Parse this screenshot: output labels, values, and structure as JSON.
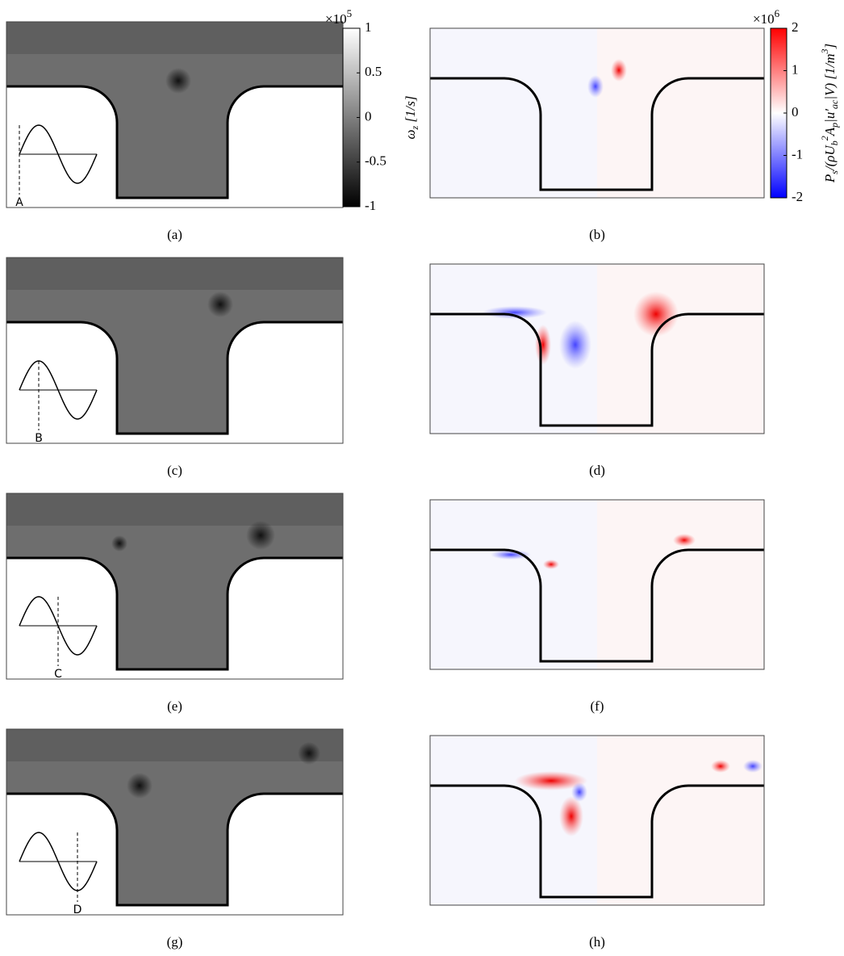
{
  "colorbars": [
    {
      "label": [
        {
          "text": "ω",
          "style": "normal"
        },
        {
          "text": "z",
          "style": "sub"
        },
        {
          "text": " [1/s]",
          "style": "normal"
        }
      ],
      "multiplier": "×10",
      "exponent": "5",
      "lim": [
        -1,
        1
      ],
      "ticks": [
        1,
        0.5,
        0,
        -0.5,
        -1
      ]
    },
    {
      "label": [
        {
          "text": "P",
          "style": "normal"
        },
        {
          "text": "s",
          "style": "sub"
        },
        {
          "text": "/(ρU",
          "style": "normal"
        },
        {
          "text": "b",
          "style": "sub"
        },
        {
          "text": "2",
          "style": "sup"
        },
        {
          "text": "A",
          "style": "normal"
        },
        {
          "text": "p",
          "style": "sub"
        },
        {
          "text": "|u′",
          "style": "normal"
        },
        {
          "text": "ac",
          "style": "sub"
        },
        {
          "text": "|V) [1/m",
          "style": "normal"
        },
        {
          "text": "3",
          "style": "sup"
        },
        {
          "text": "]",
          "style": "normal"
        }
      ],
      "multiplier": "×10",
      "exponent": "6",
      "lim": [
        -2,
        2
      ],
      "ticks": [
        2,
        1,
        0,
        -1,
        -2
      ]
    }
  ],
  "rows": [
    {
      "left_caption": "(a)",
      "right_caption": "(b)",
      "phase_label": "A"
    },
    {
      "left_caption": "(c)",
      "right_caption": "(d)",
      "phase_label": "B"
    },
    {
      "left_caption": "(e)",
      "right_caption": "(f)",
      "phase_label": "C"
    },
    {
      "left_caption": "(g)",
      "right_caption": "(h)",
      "phase_label": "D"
    }
  ]
}
